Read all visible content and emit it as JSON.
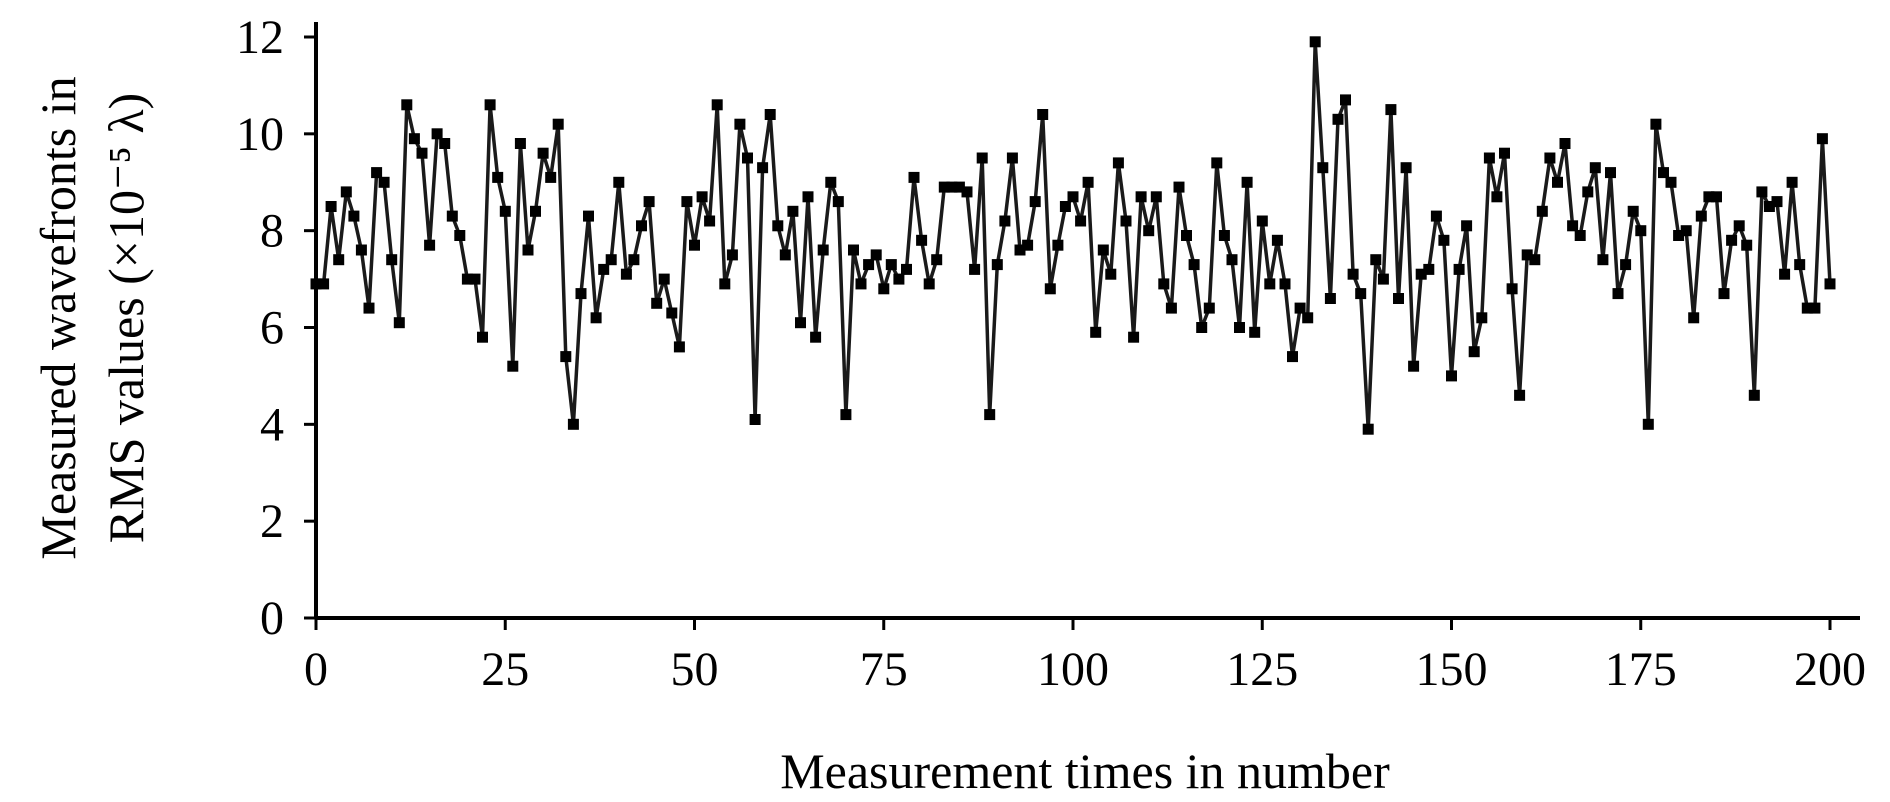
{
  "chart_data": {
    "type": "line",
    "xlabel": "Measurement times in number",
    "ylabel_lines": [
      "Measured wavefronts in",
      "RMS values (×10⁻⁵ λ)"
    ],
    "xlim": [
      0,
      200
    ],
    "ylim": [
      0,
      12
    ],
    "x_ticks": [
      0,
      25,
      50,
      75,
      100,
      125,
      150,
      175,
      200
    ],
    "y_ticks": [
      0,
      2,
      4,
      6,
      8,
      10,
      12
    ],
    "grid": false,
    "legend": "none",
    "marker": "square",
    "series": [
      {
        "color": "#000000",
        "x_start": 0,
        "x_step": 1,
        "values": [
          6.9,
          6.9,
          8.5,
          7.4,
          8.8,
          8.3,
          7.6,
          6.4,
          9.2,
          9.0,
          7.4,
          6.1,
          10.6,
          9.9,
          9.6,
          7.7,
          10.0,
          9.8,
          8.3,
          7.9,
          7.0,
          7.0,
          5.8,
          10.6,
          9.1,
          8.4,
          5.2,
          9.8,
          7.6,
          8.4,
          9.6,
          9.1,
          10.2,
          5.4,
          4.0,
          6.7,
          8.3,
          6.2,
          7.2,
          7.4,
          9.0,
          7.1,
          7.4,
          8.1,
          8.6,
          6.5,
          7.0,
          6.3,
          5.6,
          8.6,
          7.7,
          8.7,
          8.2,
          10.6,
          6.9,
          7.5,
          10.2,
          9.5,
          4.1,
          9.3,
          10.4,
          8.1,
          7.5,
          8.4,
          6.1,
          8.7,
          5.8,
          7.6,
          9.0,
          8.6,
          4.2,
          7.6,
          6.9,
          7.3,
          7.5,
          6.8,
          7.3,
          7.0,
          7.2,
          9.1,
          7.8,
          6.9,
          7.4,
          8.9,
          8.9,
          8.9,
          8.8,
          7.2,
          9.5,
          4.2,
          7.3,
          8.2,
          9.5,
          7.6,
          7.7,
          8.6,
          10.4,
          6.8,
          7.7,
          8.5,
          8.7,
          8.2,
          9.0,
          5.9,
          7.6,
          7.1,
          9.4,
          8.2,
          5.8,
          8.7,
          8.0,
          8.7,
          6.9,
          6.4,
          8.9,
          7.9,
          7.3,
          6.0,
          6.4,
          9.4,
          7.9,
          7.4,
          6.0,
          9.0,
          5.9,
          8.2,
          6.9,
          7.8,
          6.9,
          5.4,
          6.4,
          6.2,
          11.9,
          9.3,
          6.6,
          10.3,
          10.7,
          7.1,
          6.7,
          3.9,
          7.4,
          7.0,
          10.5,
          6.6,
          9.3,
          5.2,
          7.1,
          7.2,
          8.3,
          7.8,
          5.0,
          7.2,
          8.1,
          5.5,
          6.2,
          9.5,
          8.7,
          9.6,
          6.8,
          4.6,
          7.5,
          7.4,
          8.4,
          9.5,
          9.0,
          9.8,
          8.1,
          7.9,
          8.8,
          9.3,
          7.4,
          9.2,
          6.7,
          7.3,
          8.4,
          8.0,
          4.0,
          10.2,
          9.2,
          9.0,
          7.9,
          8.0,
          6.2,
          8.3,
          8.7,
          8.7,
          6.7,
          7.8,
          8.1,
          7.7,
          4.6,
          8.8,
          8.5,
          8.6,
          7.1,
          9.0,
          7.3,
          6.4,
          6.4,
          9.9,
          6.9
        ]
      }
    ]
  }
}
